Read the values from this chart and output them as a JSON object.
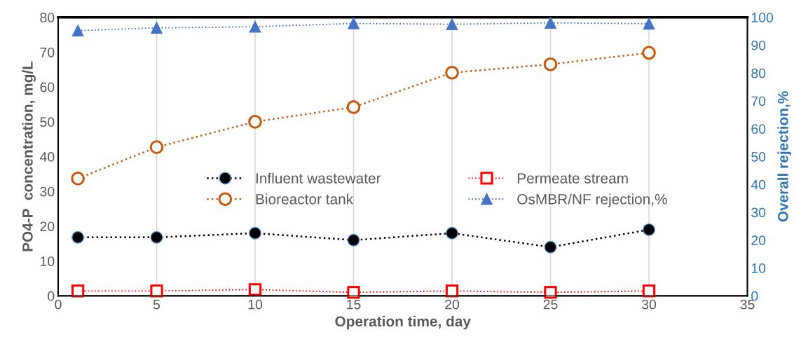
{
  "chart_data": {
    "type": "line",
    "xlabel": "Operation time, day",
    "ylabel": "PO4-P  concentration, mg/L",
    "y2label": "Overall rejection,%",
    "x": [
      1,
      5,
      10,
      15,
      20,
      25,
      30
    ],
    "xlim": [
      0,
      35
    ],
    "xticks": [
      0,
      5,
      10,
      15,
      20,
      25,
      30,
      35
    ],
    "ylim": [
      0,
      80
    ],
    "yticks": [
      0,
      10,
      20,
      30,
      40,
      50,
      60,
      70,
      80
    ],
    "y2lim": [
      0,
      100
    ],
    "y2ticks": [
      0,
      10,
      20,
      30,
      40,
      50,
      60,
      70,
      80,
      90,
      100
    ],
    "grid": "x",
    "legend": "center",
    "line_style": "dotted",
    "series": [
      {
        "name": "Influent wastewater",
        "color": "#000000",
        "marker": "circle",
        "values": [
          16.8,
          16.8,
          18,
          16,
          18,
          14,
          19
        ]
      },
      {
        "name": "Bioreactor tank",
        "color": "#c55a11",
        "marker": "circle",
        "values": [
          33.7,
          42.7,
          50,
          54.2,
          64.1,
          66.5,
          69.8
        ]
      },
      {
        "name": "Permeate stream",
        "color": "#ff0000",
        "marker": "square",
        "values": [
          1.4,
          1.4,
          1.8,
          1.0,
          1.4,
          1.0,
          1.4
        ]
      },
      {
        "name": "OsMBR/NF rejection,%",
        "color": "#4472c4",
        "marker": "triangle",
        "axis": "y2",
        "values": [
          95.2,
          96.2,
          96.6,
          97.8,
          97.5,
          98,
          97.7
        ]
      }
    ]
  }
}
